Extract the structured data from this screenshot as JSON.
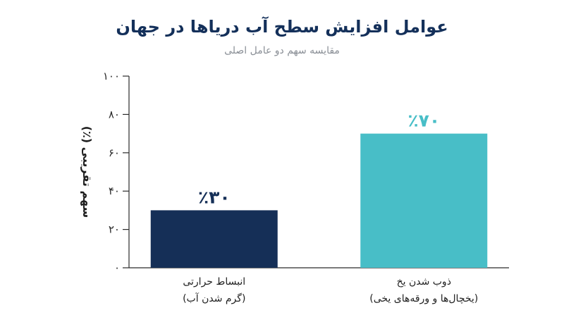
{
  "chart_data": {
    "type": "bar",
    "title": "عوامل افزایش سطح آب دریاها در جهان",
    "subtitle": "مقایسه سهم دو عامل اصلی",
    "ylabel": "سهم تقریبی (٪)",
    "xlabel": "",
    "ylim": [
      0,
      100
    ],
    "yticks": [
      0,
      20,
      40,
      60,
      80,
      100
    ],
    "ytick_labels": [
      "۰",
      "۲۰",
      "۴۰",
      "۶۰",
      "۸۰",
      "۱۰۰"
    ],
    "grid": false,
    "categories": [
      [
        "انبساط حرارتی",
        "(گرم شدن آب)"
      ],
      [
        "ذوب شدن یخ",
        "(یخچال‌ها و ورقه‌های یخی)"
      ]
    ],
    "values": [
      30,
      70
    ],
    "value_labels": [
      "٪۳۰",
      "٪۷۰"
    ],
    "colors": [
      "#152f57",
      "#48bec7"
    ]
  },
  "colors": {
    "title": "#14305a",
    "subtitle": "#8a8f96",
    "axis": "#2b2b2b"
  }
}
